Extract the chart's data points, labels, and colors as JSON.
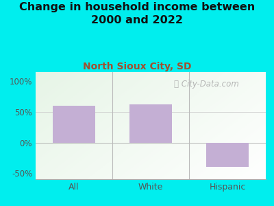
{
  "title": "Change in household income between\n2000 and 2022",
  "subtitle": "North Sioux City, SD",
  "categories": [
    "All",
    "White",
    "Hispanic"
  ],
  "values": [
    60,
    62,
    -40
  ],
  "bar_color": "#c4afd4",
  "title_fontsize": 11.5,
  "subtitle_fontsize": 10,
  "subtitle_color": "#a05030",
  "background_color": "#00EEEE",
  "ylim": [
    -60,
    115
  ],
  "yticks": [
    -50,
    0,
    50,
    100
  ],
  "ytick_labels": [
    "-50%",
    "0%",
    "50%",
    "100%"
  ],
  "watermark": " City-Data.com",
  "watermark_color": "#aaaaaa",
  "plot_bg_color": "#e8f5e0",
  "grid_color": "#dddddd",
  "title_color": "#111111",
  "tick_color": "#555555",
  "divider_color": "#bbbbbb"
}
